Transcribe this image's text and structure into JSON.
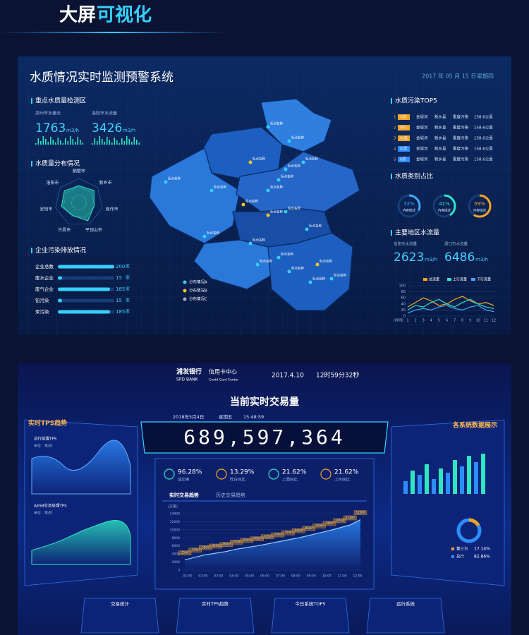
{
  "header": {
    "title_a": "大屏",
    "title_b": "可视化"
  },
  "water": {
    "title": "水质情况实时监测预警系统",
    "date": "2017 年 05 月 15 日",
    "weekday": "星期四",
    "detect": {
      "title": "重点水质量检测区",
      "items": [
        {
          "label": "郑州市水量流",
          "value": 1763,
          "unit": "m3/h"
        },
        {
          "label": "洛阳市水流量",
          "value": 3426,
          "unit": "m3/h"
        }
      ]
    },
    "radar": {
      "title": "水质量分布情况",
      "labels": [
        "鹤壁市",
        "新乡市",
        "焦作市",
        "平顶山市",
        "许昌市",
        "安阳市",
        "洛阳市"
      ],
      "values": [
        70,
        80,
        65,
        85,
        60,
        75,
        78
      ],
      "max": 100
    },
    "enterprise": {
      "title": "企业污染排放情况",
      "unit": "家",
      "max": 200,
      "items": [
        {
          "label": "企业总数",
          "value": 200
        },
        {
          "label": "废水企业",
          "value": 15
        },
        {
          "label": "废气企业",
          "value": 185
        },
        {
          "label": "铅污染",
          "value": 15
        },
        {
          "label": "汞污染",
          "value": 185
        }
      ]
    },
    "map": {
      "pin": "标点名称",
      "legend": [
        "分布情况A",
        "分布情况B",
        "分布情况C"
      ]
    },
    "top5": {
      "title": "水质污染TOP5",
      "rows": [
        [
          "1",
          "V类",
          "金堤河",
          "新乡县",
          "重度污染",
          "158.6公里"
        ],
        [
          "2",
          "劣V",
          "金堤河",
          "新乡县",
          "重度污染",
          "158.6公里"
        ],
        [
          "3",
          "IV类",
          "金堤河",
          "新乡县",
          "重度污染",
          "158.6公里"
        ],
        [
          "4",
          "III类",
          "金堤河",
          "新乡县",
          "重度污染",
          "158.6公里"
        ],
        [
          "5",
          "II类",
          "金堤河",
          "新乡县",
          "重度污染",
          "158.6公里"
        ]
      ]
    },
    "ratio": {
      "title": "水质类别占比",
      "caption": "内容描述",
      "items": [
        {
          "value": 32,
          "label": "32%",
          "color": "#3fa9f5"
        },
        {
          "value": 41,
          "label": "41%",
          "color": "#2ee6c0"
        },
        {
          "value": 59,
          "label": "59%",
          "color": "#f5a623"
        }
      ]
    },
    "flow": {
      "title": "主要地区水流量",
      "items": [
        {
          "label": "信阳市水流量",
          "value": 2623,
          "unit": "m3/h"
        },
        {
          "label": "周口市水流量",
          "value": 6486,
          "unit": "m3/h"
        }
      ],
      "chart": {
        "type": "line",
        "x": [
          1,
          2,
          3,
          4,
          5,
          6,
          7,
          8,
          9,
          10,
          11,
          12
        ],
        "x_label": "(时间)",
        "ylim": [
          0,
          100
        ],
        "yticks": [
          0,
          20,
          40,
          60,
          80,
          100
        ],
        "series": [
          {
            "name": "总流量",
            "color": "#f5a623",
            "values": [
              30,
              45,
              60,
              50,
              35,
              40,
              55,
              65,
              50,
              40,
              45,
              35
            ]
          },
          {
            "name": "上行流量",
            "color": "#2ee6c0",
            "values": [
              20,
              35,
              30,
              45,
              55,
              40,
              30,
              45,
              55,
              40,
              30,
              25
            ]
          },
          {
            "name": "下行流量",
            "color": "#3fa9f5",
            "values": [
              10,
              20,
              25,
              20,
              30,
              35,
              25,
              20,
              30,
              35,
              20,
              15
            ]
          }
        ]
      }
    }
  },
  "bank": {
    "brand": "浦发银行",
    "brand_en": "SPD BANK",
    "center": "信用卡中心",
    "center_en": "Credit Card Center",
    "date": "2017.4.10",
    "time": "12时59分32秒",
    "title": "当前实时交易量",
    "sub_date": "2018年5月4日",
    "sub_weekday": "星期五",
    "sub_time": "15:48:59",
    "total": "689,597,364",
    "stats": [
      {
        "value": "96.28%",
        "label": "成功率"
      },
      {
        "value": "13.29%",
        "label": "昨日同比"
      },
      {
        "value": "21.62%",
        "label": "上周同比"
      },
      {
        "value": "21.62%",
        "label": "上月同比"
      }
    ],
    "tabs": [
      "实时交易趋势",
      "历史交易趋势"
    ],
    "trend": {
      "type": "line",
      "unit": "(万笔)",
      "ylim": [
        0,
        14000
      ],
      "yticks": [
        0,
        2000,
        4000,
        6000,
        8000,
        10000,
        12000,
        14000
      ],
      "xticks": [
        "01:00",
        "02:00",
        "03:00",
        "04:00",
        "05:00",
        "06:00",
        "07:00",
        "08:00",
        "09:00",
        "10:00",
        "11:00",
        "12:00"
      ],
      "values": [
        2500,
        3200,
        3800,
        4200,
        4600,
        5200,
        5600,
        6000,
        6500,
        7000,
        7500,
        8000,
        8600,
        9200,
        9800,
        10500,
        11200,
        12500
      ]
    },
    "tps": {
      "title": "实时TPS趋势",
      "a": "总行前置TPS",
      "b": "AESB业务处理TPS",
      "unit": "单位：笔/秒"
    },
    "systems": {
      "title": "各系统数据展示",
      "bars": {
        "ylim": [
          0,
          100
        ],
        "values": [
          30,
          55,
          45,
          70,
          35,
          60,
          50,
          80,
          65,
          90,
          75,
          95
        ]
      },
      "donut": [
        {
          "name": "第三方",
          "value": 17.14,
          "label": "17.14%",
          "color": "#f5a623"
        },
        {
          "name": "总行",
          "value": 82.86,
          "label": "82.86%",
          "color": "#2f8cff"
        }
      ]
    },
    "tiles": [
      "交易统计",
      "实时TPS趋势",
      "今日系统TOP5",
      "运行系统"
    ]
  }
}
